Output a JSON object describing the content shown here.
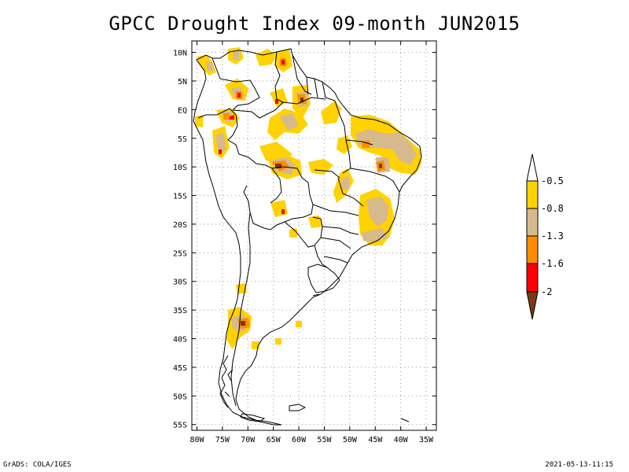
{
  "title": "GPCC Drought Index 09-month JUN2015",
  "axes": {
    "lat_labels": [
      "10N",
      "5N",
      "EQ",
      "5S",
      "10S",
      "15S",
      "20S",
      "25S",
      "30S",
      "35S",
      "40S",
      "45S",
      "50S",
      "55S"
    ],
    "lon_labels": [
      "80W",
      "75W",
      "70W",
      "65W",
      "60W",
      "55W",
      "50W",
      "45W",
      "40W",
      "35W"
    ],
    "lat_range": [
      -56,
      12
    ],
    "lon_range": [
      -81,
      -33
    ]
  },
  "legend": {
    "labels": [
      "-0.5",
      "-0.8",
      "-1.3",
      "-1.6",
      "-2"
    ],
    "colors": [
      "#ffffff",
      "#ffd200",
      "#d7b98e",
      "#ff8c00",
      "#ff0000",
      "#7a3a10"
    ]
  },
  "footer": {
    "left": "GrADS: COLA/IGES",
    "right": "2021-05-13-11:15"
  }
}
